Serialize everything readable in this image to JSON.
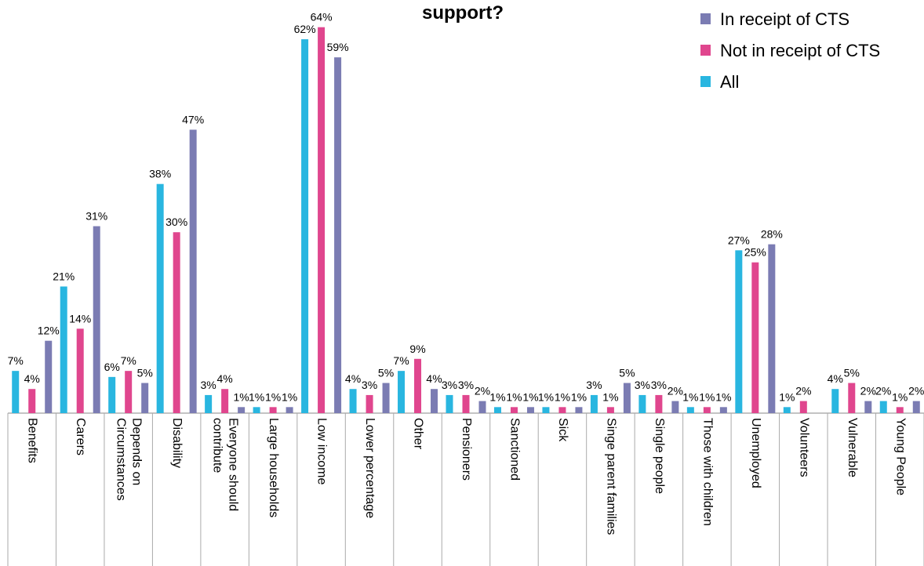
{
  "chart_data": {
    "type": "bar",
    "title": "support?",
    "categories": [
      "Benefits",
      "Carers",
      "Depends on Circumstances",
      "Disability",
      "Everyone should contribute",
      "Large households",
      "Low income",
      "Lower percentage",
      "Other",
      "Pensioners",
      "Sanctioned",
      "Sick",
      "Singe parent families",
      "Single people",
      "Those with children",
      "Unemployed",
      "Volunteers",
      "Vulnerable",
      "Young People"
    ],
    "series": [
      {
        "name": "In receipt of CTS",
        "color": "#7b7cb3",
        "values": [
          12,
          31,
          5,
          47,
          1,
          1,
          59,
          5,
          4,
          2,
          1,
          1,
          5,
          2,
          1,
          28,
          null,
          2,
          2
        ],
        "value_labels": [
          "12%",
          "31%",
          "5%",
          "47%",
          "1%",
          "1%",
          "59%",
          "5%",
          "4%",
          "2%",
          "1%",
          "1%",
          "5%",
          "2%",
          "1%",
          "28%",
          null,
          "2%",
          "2%"
        ]
      },
      {
        "name": "Not in receipt of CTS",
        "color": "#e0468e",
        "values": [
          4,
          14,
          7,
          30,
          4,
          1,
          64,
          3,
          9,
          3,
          1,
          1,
          1,
          3,
          1,
          25,
          2,
          5,
          1
        ],
        "value_labels": [
          "4%",
          "14%",
          "7%",
          "30%",
          "4%",
          "1%",
          "64%",
          "3%",
          "9%",
          "3%",
          "1%",
          "1%",
          "1%",
          "3%",
          "1%",
          "25%",
          "2%",
          "5%",
          "1%"
        ]
      },
      {
        "name": "All",
        "color": "#29b6e0",
        "values": [
          7,
          21,
          6,
          38,
          3,
          1,
          62,
          4,
          7,
          3,
          1,
          1,
          3,
          3,
          1,
          27,
          1,
          4,
          2
        ],
        "value_labels": [
          "7%",
          "21%",
          "6%",
          "38%",
          "3%",
          "1%",
          "62%",
          "4%",
          "7%",
          "3%",
          "1%",
          "1%",
          "3%",
          "3%",
          "1%",
          "27%",
          "1%",
          "4%",
          "2%"
        ]
      }
    ],
    "ylim": [
      0,
      65
    ],
    "legend": "upper right"
  }
}
